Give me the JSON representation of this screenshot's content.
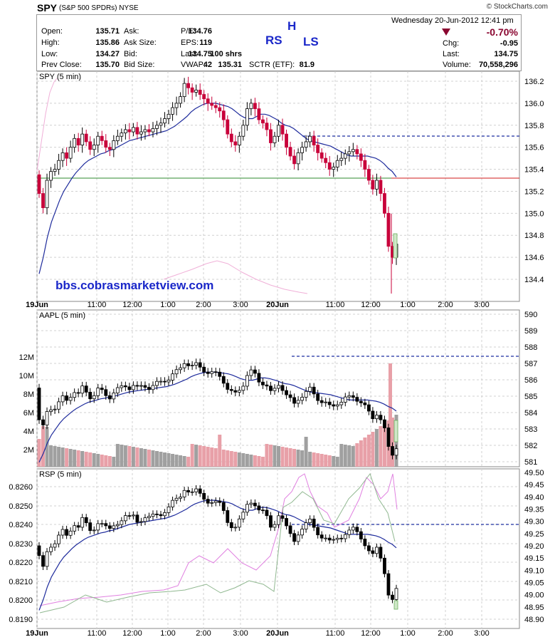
{
  "header": {
    "symbol": "SPY",
    "description": "(S&P 500 SPDRs)",
    "exchange": "NYSE",
    "logo_text": "© StockCharts.com"
  },
  "quote": {
    "date": "Wednesday  20-Jun-2012  12:41 pm",
    "change_pct": "-0.70%",
    "fields": [
      {
        "label": "Open:",
        "value": "135.71"
      },
      {
        "label": "High:",
        "value": "135.86"
      },
      {
        "label": "Low:",
        "value": "134.27"
      },
      {
        "label": "Prev Close:",
        "value": "135.70"
      },
      {
        "label": "Ask:",
        "value": "134.76"
      },
      {
        "label": "Ask Size:",
        "value": "119"
      },
      {
        "label": "Bid:",
        "value": "134.75"
      },
      {
        "label": "Bid Size:",
        "value": "42"
      },
      {
        "label": "P/E:",
        "value": ""
      },
      {
        "label": "EPS:",
        "value": ""
      },
      {
        "label": "Last:",
        "value": "100 shrs"
      },
      {
        "label": "VWAP:",
        "value": "135.31"
      },
      {
        "label": "SCTR (ETF):",
        "value": "81.9"
      },
      {
        "label": "Chg:",
        "value": "-0.95"
      },
      {
        "label": "Last:",
        "value": "134.75"
      },
      {
        "label": "Volume:",
        "value": "70,558,296"
      }
    ]
  },
  "annotations": {
    "rs": "RS",
    "h": "H",
    "ls": "LS",
    "watermark": "bbs.cobrasmarketview.com"
  },
  "colors": {
    "up_candle": "#000000",
    "down_candle": "#c8003a",
    "ma_line": "#1e2b9c",
    "support_line": "#2c8a2c",
    "resistance_line": "#d11a1a",
    "dashed_line": "#1c2fa0",
    "volume_up": "#a0a0a0",
    "volume_down": "#e8a0a8",
    "overlay_pink": "#e080e0",
    "overlay_green": "#90b890"
  },
  "chart_data": [
    {
      "type": "candlestick",
      "title": "SPY (5 min)",
      "x_ticks": [
        "19Jun",
        "11:00",
        "12:00",
        "1:00",
        "2:00",
        "3:00",
        "20Jun",
        "11:00",
        "12:00",
        "1:00",
        "2:00",
        "3:00"
      ],
      "y_ticks": [
        "136.2",
        "136.0",
        "135.8",
        "135.6",
        "135.4",
        "135.2",
        "135.0",
        "134.8",
        "134.6",
        "134.4"
      ],
      "ylim": [
        134.2,
        136.27
      ],
      "close": [
        135.18,
        135.05,
        135.3,
        135.38,
        135.4,
        135.48,
        135.55,
        135.5,
        135.6,
        135.68,
        135.62,
        135.72,
        135.65,
        135.58,
        135.62,
        135.7,
        135.66,
        135.6,
        135.58,
        135.66,
        135.7,
        135.73,
        135.76,
        135.74,
        135.78,
        135.72,
        135.74,
        135.76,
        135.74,
        135.77,
        135.8,
        135.82,
        135.86,
        135.9,
        135.96,
        136.0,
        136.06,
        136.18,
        136.14,
        136.1,
        136.12,
        136.08,
        136.04,
        136.0,
        135.98,
        135.96,
        135.93,
        135.85,
        135.72,
        135.65,
        135.62,
        135.7,
        135.8,
        135.95,
        136.0,
        135.95,
        135.85,
        135.82,
        135.76,
        135.64,
        135.7,
        135.8,
        135.72,
        135.6,
        135.52,
        135.45,
        135.55,
        135.6,
        135.65,
        135.7,
        135.62,
        135.55,
        135.5,
        135.46,
        135.4,
        135.42,
        135.48,
        135.5,
        135.54,
        135.56,
        135.58,
        135.54,
        135.48,
        135.4,
        135.3,
        135.22,
        135.3,
        135.18,
        135.0,
        134.7,
        134.6,
        134.72
      ],
      "ma": [
        134.45,
        134.6,
        134.78,
        134.92,
        135.02,
        135.12,
        135.2,
        135.26,
        135.32,
        135.37,
        135.41,
        135.45,
        135.48,
        135.5,
        135.52,
        135.54,
        135.55,
        135.57,
        135.58,
        135.6,
        135.62,
        135.64,
        135.66,
        135.67,
        135.68,
        135.69,
        135.7,
        135.71,
        135.72,
        135.73,
        135.74,
        135.75,
        135.77,
        135.79,
        135.82,
        135.85,
        135.88,
        135.92,
        135.95,
        135.97,
        135.99,
        136.0,
        136.0,
        136.0,
        135.99,
        135.98,
        135.97,
        135.95,
        135.92,
        135.89,
        135.87,
        135.86,
        135.86,
        135.88,
        135.9,
        135.9,
        135.89,
        135.87,
        135.85,
        135.82,
        135.8,
        135.79,
        135.77,
        135.74,
        135.71,
        135.68,
        135.66,
        135.65,
        135.64,
        135.63,
        135.62,
        135.61,
        135.59,
        135.57,
        135.55,
        135.53,
        135.52,
        135.52,
        135.52,
        135.52,
        135.52,
        135.51,
        135.5,
        135.48,
        135.45,
        135.41,
        135.38,
        135.33
      ]
    },
    {
      "type": "candlestick",
      "title": "AAPL (5 min)",
      "y_ticks": [
        "590",
        "589",
        "588",
        "587",
        "586",
        "585",
        "584",
        "583",
        "582",
        "581"
      ],
      "volume_ticks": [
        "12M",
        "10M",
        "8M",
        "6M",
        "4M",
        "2M"
      ],
      "ylim": [
        580.7,
        590.3
      ]
    },
    {
      "type": "candlestick",
      "title": "RSP (5 min)",
      "y_ticks_left": [
        "0.8260",
        "0.8250",
        "0.8240",
        "0.8230",
        "0.8220",
        "0.8210",
        "0.8200",
        "0.8190"
      ],
      "y_ticks_right": [
        "49.50",
        "49.45",
        "49.40",
        "49.35",
        "49.30",
        "49.25",
        "49.20",
        "49.15",
        "49.10",
        "49.05",
        "49.00",
        "48.95",
        "48.90"
      ],
      "ylim": [
        48.87,
        49.53
      ]
    }
  ]
}
